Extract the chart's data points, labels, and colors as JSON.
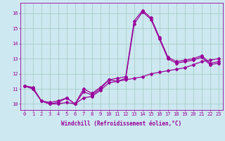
{
  "xlabel": "Windchill (Refroidissement éolien,°C)",
  "background_color": "#cde8f0",
  "grid_color": "#a0c8c0",
  "line_color": "#990099",
  "x": [
    0,
    1,
    2,
    3,
    4,
    5,
    6,
    7,
    8,
    9,
    10,
    11,
    12,
    13,
    14,
    15,
    16,
    17,
    18,
    19,
    20,
    21,
    22,
    23
  ],
  "y_line1": [
    11.2,
    11.1,
    10.2,
    10.1,
    10.2,
    10.4,
    10.0,
    11.0,
    10.7,
    11.1,
    11.6,
    11.7,
    11.8,
    15.5,
    16.2,
    15.7,
    14.4,
    13.1,
    12.8,
    12.9,
    13.0,
    13.2,
    12.7,
    12.8
  ],
  "y_line2": [
    11.2,
    11.0,
    10.2,
    10.0,
    10.1,
    10.4,
    10.0,
    10.8,
    10.6,
    11.0,
    11.6,
    11.5,
    11.7,
    15.3,
    16.1,
    15.6,
    14.3,
    13.0,
    12.7,
    12.8,
    12.9,
    13.1,
    12.6,
    12.7
  ],
  "y_line3": [
    11.2,
    11.0,
    10.2,
    10.0,
    10.0,
    10.1,
    10.0,
    10.4,
    10.5,
    10.9,
    11.4,
    11.5,
    11.6,
    11.7,
    11.8,
    12.0,
    12.1,
    12.2,
    12.3,
    12.4,
    12.6,
    12.8,
    12.9,
    13.0
  ],
  "ylim": [
    9.6,
    16.7
  ],
  "xlim": [
    -0.5,
    23.5
  ],
  "yticks": [
    10,
    11,
    12,
    13,
    14,
    15,
    16
  ],
  "xticks": [
    0,
    1,
    2,
    3,
    4,
    5,
    6,
    7,
    8,
    9,
    10,
    11,
    12,
    13,
    14,
    15,
    16,
    17,
    18,
    19,
    20,
    21,
    22,
    23
  ],
  "tick_fontsize": 5.0,
  "xlabel_fontsize": 5.5,
  "marker": "D",
  "markersize": 2.0,
  "linewidth": 0.9
}
